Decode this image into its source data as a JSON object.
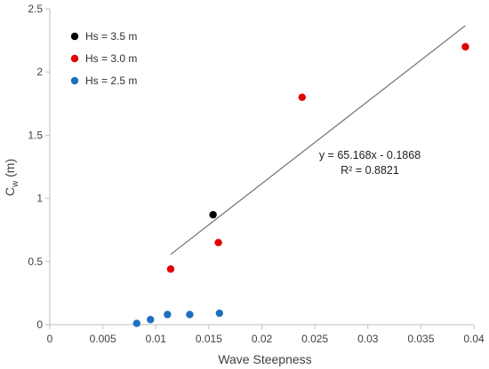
{
  "chart_data": {
    "type": "scatter",
    "xlabel": "Wave Steepness",
    "ylabel_main": "C",
    "ylabel_sub": "w",
    "ylabel_unit": " (m)",
    "xlim": [
      0,
      0.04
    ],
    "ylim": [
      0,
      2.5
    ],
    "x_ticks": [
      0,
      0.005,
      0.01,
      0.015,
      0.02,
      0.025,
      0.03,
      0.035,
      0.04
    ],
    "x_tick_labels": [
      "0",
      "0.005",
      "0.01",
      "0.015",
      "0.02",
      "0.025",
      "0.03",
      "0.035",
      "0.04"
    ],
    "y_ticks": [
      0,
      0.5,
      1,
      1.5,
      2,
      2.5
    ],
    "y_tick_labels": [
      "0",
      "0.5",
      "1",
      "1.5",
      "2",
      "2.5"
    ],
    "grid": false,
    "legend_position": "top-left",
    "series": [
      {
        "name": "Hs = 3.5 m",
        "color": "#000000",
        "points": [
          {
            "x": 0.0154,
            "y": 0.87
          }
        ]
      },
      {
        "name": "Hs = 3.0 m",
        "color": "#e30000",
        "points": [
          {
            "x": 0.0114,
            "y": 0.44
          },
          {
            "x": 0.0159,
            "y": 0.65
          },
          {
            "x": 0.0238,
            "y": 1.8
          },
          {
            "x": 0.0392,
            "y": 2.2
          }
        ]
      },
      {
        "name": "Hs = 2.5 m",
        "color": "#1f6fbf",
        "points": [
          {
            "x": 0.0082,
            "y": 0.01
          },
          {
            "x": 0.0095,
            "y": 0.04
          },
          {
            "x": 0.0111,
            "y": 0.08
          },
          {
            "x": 0.0132,
            "y": 0.08
          },
          {
            "x": 0.016,
            "y": 0.09
          }
        ]
      }
    ],
    "trendline": {
      "color": "#707070",
      "slope": 65.168,
      "intercept": -0.1868,
      "x_range": [
        0.0114,
        0.0392
      ]
    },
    "annotations": {
      "equation": "y = 65.168x - 0.1868",
      "r_squared": "R² = 0.8821"
    }
  }
}
